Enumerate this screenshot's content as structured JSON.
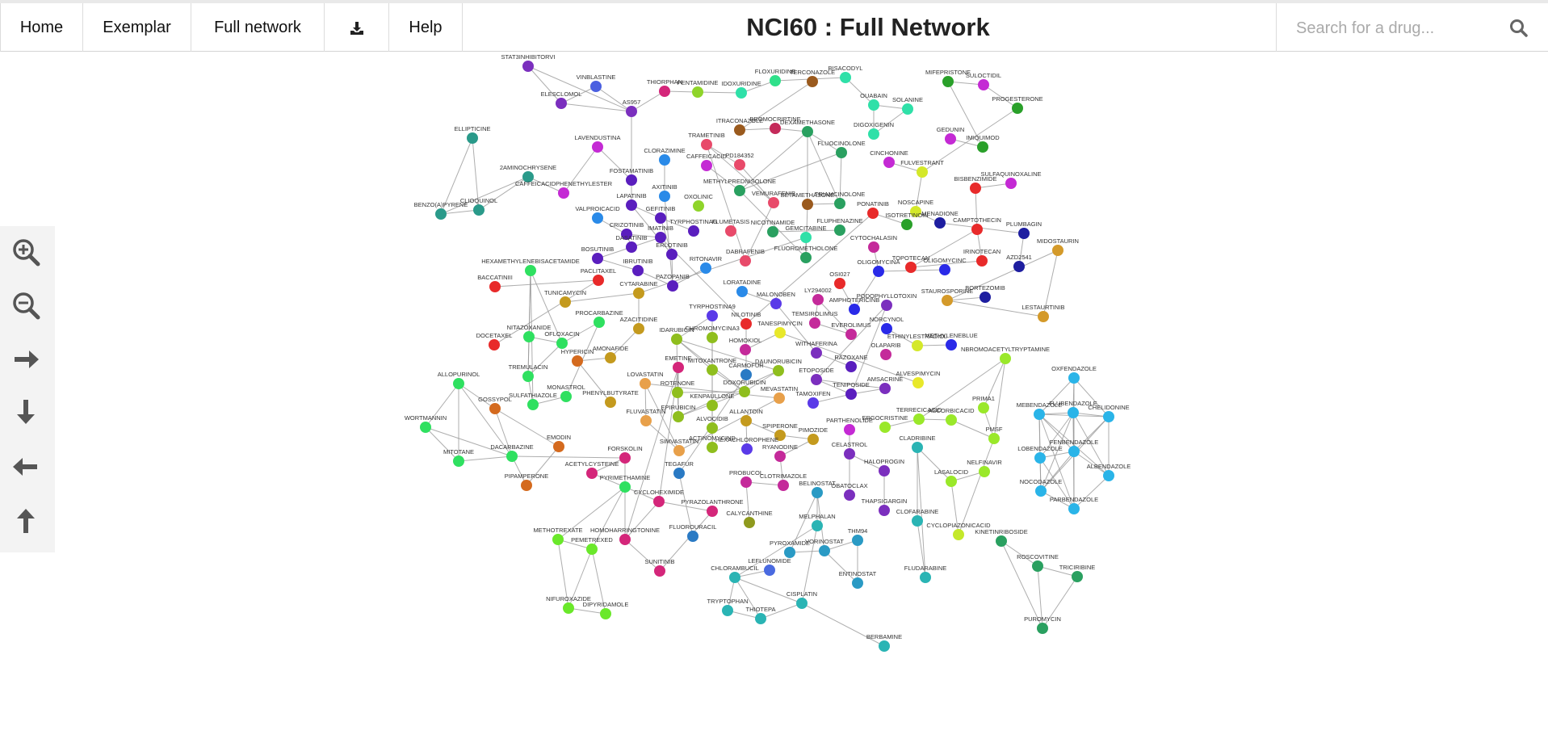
{
  "nav": {
    "home": "Home",
    "exemplar": "Exemplar",
    "full_network": "Full network",
    "download_icon": "download-icon",
    "help": "Help"
  },
  "title": "NCI60 : Full Network",
  "search": {
    "placeholder": "Search for a drug...",
    "icon": "search-icon"
  },
  "zoom_controls": [
    "zoom-in-icon",
    "zoom-out-icon",
    "pan-right-icon",
    "pan-down-icon",
    "pan-left-icon",
    "pan-up-icon"
  ],
  "colors": {
    "accent": "#333333",
    "edge": "#9a9a9a"
  },
  "network": {
    "nodes": [
      {
        "id": "STAT3INHIBITORVI",
        "c": "#7b2fbe"
      },
      {
        "id": "VINBLASTINE",
        "c": "#4a5fe0"
      },
      {
        "id": "ELESCLOMOL",
        "c": "#7b2fbe"
      },
      {
        "id": "AS957",
        "c": "#7b2fbe"
      },
      {
        "id": "THIORPHAN",
        "c": "#d4267a"
      },
      {
        "id": "PENTAMIDINE",
        "c": "#8fd42a"
      },
      {
        "id": "FLOXURIDINE",
        "c": "#2fe08a"
      },
      {
        "id": "TERCONAZOLE",
        "c": "#9a5a1e"
      },
      {
        "id": "BISACODYL",
        "c": "#2fe0a8"
      },
      {
        "id": "IDOXURIDINE",
        "c": "#2fe0a8"
      },
      {
        "id": "MIFEPRISTONE",
        "c": "#2aa02a"
      },
      {
        "id": "SULOCTIDIL",
        "c": "#c42ad4"
      },
      {
        "id": "PROGESTERONE",
        "c": "#2aa02a"
      },
      {
        "id": "OUABAIN",
        "c": "#2fe0a8"
      },
      {
        "id": "SOLANINE",
        "c": "#2fe0a8"
      },
      {
        "id": "ELLIPTICINE",
        "c": "#2a9a8a"
      },
      {
        "id": "LAVENDUSTINA",
        "c": "#c42ad4"
      },
      {
        "id": "ITRACONAZOLE",
        "c": "#9a5a1e"
      },
      {
        "id": "BROMOCRIPTINE",
        "c": "#c42a5a"
      },
      {
        "id": "DEXAMETHASONE",
        "c": "#2aa060"
      },
      {
        "id": "DIGOXIGENIN",
        "c": "#2fe0a8"
      },
      {
        "id": "GEDUNIN",
        "c": "#c42ad4"
      },
      {
        "id": "IMIQUIMOD",
        "c": "#2aa02a"
      },
      {
        "id": "TRAMETINIB",
        "c": "#e84a6a"
      },
      {
        "id": "CLORAZIMINE",
        "c": "#2a8ae8"
      },
      {
        "id": "CAFFEICACID",
        "c": "#c42ad4"
      },
      {
        "id": "PD184352",
        "c": "#e84a6a"
      },
      {
        "id": "FLUOCINOLONE",
        "c": "#2aa060"
      },
      {
        "id": "CINCHONINE",
        "c": "#c42ad4"
      },
      {
        "id": "FULVESTRANT",
        "c": "#d4e82a"
      },
      {
        "id": "SULFAQUINOXALINE",
        "c": "#c42ad4"
      },
      {
        "id": "BISBENZIMIDE",
        "c": "#e82a2a"
      },
      {
        "id": "2AMINOCHRYSENE",
        "c": "#2a9a8a"
      },
      {
        "id": "CAFFEICACIDPHENETHYLESTER",
        "c": "#c42ad4"
      },
      {
        "id": "CLIOQUINOL",
        "c": "#2a9a8a"
      },
      {
        "id": "BENZO(A)PYRENE",
        "c": "#2a9a8a"
      },
      {
        "id": "FOSTAMATINIB",
        "c": "#5a1ebe"
      },
      {
        "id": "AXITINIB",
        "c": "#2a8ae8"
      },
      {
        "id": "OXOLINIC",
        "c": "#8fd42a"
      },
      {
        "id": "METHYLPREDNISOLONE",
        "c": "#2aa060"
      },
      {
        "id": "VEMURAFENIB",
        "c": "#e84a6a"
      },
      {
        "id": "BETAMETHASONE",
        "c": "#9a5a1e"
      },
      {
        "id": "TRIAMCINOLONE",
        "c": "#2aa060"
      },
      {
        "id": "NOSCAPINE",
        "c": "#d4e82a"
      },
      {
        "id": "MENADIONE",
        "c": "#1e1ea0"
      },
      {
        "id": "CAMPTOTHECIN",
        "c": "#e82a2a"
      },
      {
        "id": "PLUMBAGIN",
        "c": "#1e1ea0"
      },
      {
        "id": "VALPROICACID",
        "c": "#2a8ae8"
      },
      {
        "id": "LAPATINIB",
        "c": "#5a1ebe"
      },
      {
        "id": "GEFITINIB",
        "c": "#5a1ebe"
      },
      {
        "id": "TYRPHOSTINAG",
        "c": "#5a1ebe"
      },
      {
        "id": "PONATINIB",
        "c": "#e82a2a"
      },
      {
        "id": "ISOTRETINOIN",
        "c": "#2aa02a"
      },
      {
        "id": "CRIZOTINIB",
        "c": "#5a1ebe"
      },
      {
        "id": "IMATINIB",
        "c": "#5a1ebe"
      },
      {
        "id": "DASATINIB",
        "c": "#5a1ebe"
      },
      {
        "id": "FLUMETASIS",
        "c": "#e84a6a"
      },
      {
        "id": "NICOTINAMIDE",
        "c": "#2aa060"
      },
      {
        "id": "GEMCITABINE",
        "c": "#2fe0a8"
      },
      {
        "id": "FLUPHENAZINE",
        "c": "#2aa060"
      },
      {
        "id": "MIDOSTAURIN",
        "c": "#d49a2a"
      },
      {
        "id": "HEXAMETHYLENEBISACETAMIDE",
        "c": "#2fe060"
      },
      {
        "id": "BOSUTINIB",
        "c": "#5a1ebe"
      },
      {
        "id": "ERLOTINIB",
        "c": "#5a1ebe"
      },
      {
        "id": "DABRAFENIB",
        "c": "#e84a6a"
      },
      {
        "id": "FLUOROMETHOLONE",
        "c": "#2aa060"
      },
      {
        "id": "CYTOCHALASIN",
        "c": "#c42a9a"
      },
      {
        "id": "TOPOTECAN",
        "c": "#e82a2a"
      },
      {
        "id": "OLIGOMYCINC",
        "c": "#2a2ae8"
      },
      {
        "id": "IRINOTECAN",
        "c": "#e82a2a"
      },
      {
        "id": "AZD2541",
        "c": "#1e1ea0"
      },
      {
        "id": "BACCATINIII",
        "c": "#e82a2a"
      },
      {
        "id": "PACLITAXEL",
        "c": "#e82a2a"
      },
      {
        "id": "IBRUTINIB",
        "c": "#5a1ebe"
      },
      {
        "id": "RITONAVIR",
        "c": "#2a8ae8"
      },
      {
        "id": "OLIGOMYCINA",
        "c": "#2a2ae8"
      },
      {
        "id": "OSI027",
        "c": "#e82a2a"
      },
      {
        "id": "TUNICAMYCIN",
        "c": "#c49a1e"
      },
      {
        "id": "CYTARABINE",
        "c": "#c49a1e"
      },
      {
        "id": "PAZOPANIB",
        "c": "#5a1ebe"
      },
      {
        "id": "LORATADINE",
        "c": "#2a8ae8"
      },
      {
        "id": "STAUROSPORINE",
        "c": "#d49a2a"
      },
      {
        "id": "BORTEZOMIB",
        "c": "#1e1ea0"
      },
      {
        "id": "LESTAURTINIB",
        "c": "#d49a2a"
      },
      {
        "id": "PROCARBAZINE",
        "c": "#2fe060"
      },
      {
        "id": "MALONOBEN",
        "c": "#5a3ae8"
      },
      {
        "id": "LY294002",
        "c": "#c42a9a"
      },
      {
        "id": "PODOPHYLLOTOXIN",
        "c": "#7b2fbe"
      },
      {
        "id": "AMPHOTERICINB",
        "c": "#2a2ae8"
      },
      {
        "id": "NITAZOXANIDE",
        "c": "#2fe060"
      },
      {
        "id": "AZACITIDINE",
        "c": "#c49a1e"
      },
      {
        "id": "TYRPHOSTINA9",
        "c": "#5a3ae8"
      },
      {
        "id": "NILOTINIB",
        "c": "#e82a2a"
      },
      {
        "id": "TEMSIROLIMUS",
        "c": "#c42a9a"
      },
      {
        "id": "NORCYNOL",
        "c": "#2a2ae8"
      },
      {
        "id": "OFLOXACIN",
        "c": "#2fe060"
      },
      {
        "id": "DOCETAXEL",
        "c": "#e82a2a"
      },
      {
        "id": "HYPERICIN",
        "c": "#d46a1e"
      },
      {
        "id": "AMONAFIDE",
        "c": "#c49a1e"
      },
      {
        "id": "IDARUBICIN",
        "c": "#8fbe1e"
      },
      {
        "id": "CHROMOMYCINA3",
        "c": "#8fbe1e"
      },
      {
        "id": "TANESPIMYCIN",
        "c": "#e8e82a"
      },
      {
        "id": "EVEROLIMUS",
        "c": "#c42a9a"
      },
      {
        "id": "ETHINYLESTRADIOL",
        "c": "#d4e82a"
      },
      {
        "id": "METHYLENEBLUE",
        "c": "#2a2ae8"
      },
      {
        "id": "NBROMOACETYLTRYPTAMINE",
        "c": "#9ae82a"
      },
      {
        "id": "HOMOKIOL",
        "c": "#c42a9a"
      },
      {
        "id": "WITHAFERINA",
        "c": "#7b2fbe"
      },
      {
        "id": "OLAPARIB",
        "c": "#c42a9a"
      },
      {
        "id": "RAZOXANE",
        "c": "#5a1ebe"
      },
      {
        "id": "TREMULACIN",
        "c": "#2fe060"
      },
      {
        "id": "EMETINE",
        "c": "#d4267a"
      },
      {
        "id": "MITOXANTRONE",
        "c": "#8fbe1e"
      },
      {
        "id": "CARMOFUR",
        "c": "#2a7ac4"
      },
      {
        "id": "DAUNORUBICIN",
        "c": "#8fbe1e"
      },
      {
        "id": "ETOPOSIDE",
        "c": "#7b2fbe"
      },
      {
        "id": "ALVESPIMYCIN",
        "c": "#e8e82a"
      },
      {
        "id": "ALLOPURINOL",
        "c": "#2fe060"
      },
      {
        "id": "LOVASTATIN",
        "c": "#e8a04a"
      },
      {
        "id": "ROTENONE",
        "c": "#8fbe1e"
      },
      {
        "id": "DOXORUBICIN",
        "c": "#8fbe1e"
      },
      {
        "id": "AMSACRINE",
        "c": "#7b2fbe"
      },
      {
        "id": "MONASTROL",
        "c": "#2fe060"
      },
      {
        "id": "MEVASTATIN",
        "c": "#e8a04a"
      },
      {
        "id": "TENIPOSIDE",
        "c": "#5a1ebe"
      },
      {
        "id": "PRIMA1",
        "c": "#9ae82a"
      },
      {
        "id": "SULFATHIAZOLE",
        "c": "#2fe060"
      },
      {
        "id": "PHENYLBUTYRATE",
        "c": "#c49a1e"
      },
      {
        "id": "KENPAULLONE",
        "c": "#8fbe1e"
      },
      {
        "id": "TAMOXIFEN",
        "c": "#5a3ae8"
      },
      {
        "id": "GOSSYPOL",
        "c": "#d46a1e"
      },
      {
        "id": "EPIRUBICIN",
        "c": "#8fbe1e"
      },
      {
        "id": "FLUVASTATIN",
        "c": "#e8a04a"
      },
      {
        "id": "ALLANTOIN",
        "c": "#c49a1e"
      },
      {
        "id": "PARTHENOLIDE",
        "c": "#c42ad4"
      },
      {
        "id": "ERGOCRISTINE",
        "c": "#9ae82a"
      },
      {
        "id": "TERRECICACID",
        "c": "#9ae82a"
      },
      {
        "id": "ASCORBICACID",
        "c": "#9ae82a"
      },
      {
        "id": "MEBENDAZOLE",
        "c": "#2ab4e8"
      },
      {
        "id": "FLUBENDAZOLE",
        "c": "#2ab4e8"
      },
      {
        "id": "CHELIDONINE",
        "c": "#2ab4e8"
      },
      {
        "id": "OXFENDAZOLE",
        "c": "#2ab4e8"
      },
      {
        "id": "WORTMANNIN",
        "c": "#2fe060"
      },
      {
        "id": "ALVOCIDIB",
        "c": "#8fbe1e"
      },
      {
        "id": "SPIPERONE",
        "c": "#c49a1e"
      },
      {
        "id": "PIMOZIDE",
        "c": "#c49a1e"
      },
      {
        "id": "PMSF",
        "c": "#9ae82a"
      },
      {
        "id": "EMODIN",
        "c": "#d46a1e"
      },
      {
        "id": "ACTINOMYCIND",
        "c": "#8fbe1e"
      },
      {
        "id": "HEXACHLOROPHENE",
        "c": "#5a3ae8"
      },
      {
        "id": "SIMVASTATIN",
        "c": "#e8a04a"
      },
      {
        "id": "CLADRIBINE",
        "c": "#2ab4b4"
      },
      {
        "id": "FENBENDAZOLE",
        "c": "#2ab4e8"
      },
      {
        "id": "LOBENDAZOLE",
        "c": "#2ab4e8"
      },
      {
        "id": "MITOTANE",
        "c": "#2fe060"
      },
      {
        "id": "DACARBAZINE",
        "c": "#2fe060"
      },
      {
        "id": "FORSKOLIN",
        "c": "#d4267a"
      },
      {
        "id": "RYANODINE",
        "c": "#c42a9a"
      },
      {
        "id": "CELASTROL",
        "c": "#7b2fbe"
      },
      {
        "id": "NELFINAVIR",
        "c": "#9ae82a"
      },
      {
        "id": "ACETYLCYSTEINE",
        "c": "#d4267a"
      },
      {
        "id": "TEGAFUR",
        "c": "#2a7ac4"
      },
      {
        "id": "HALOPROGIN",
        "c": "#7b2fbe"
      },
      {
        "id": "ALBENDAZOLE",
        "c": "#2ab4e8"
      },
      {
        "id": "LASALOCID",
        "c": "#9ae82a"
      },
      {
        "id": "NOCODAZOLE",
        "c": "#2ab4e8"
      },
      {
        "id": "PYRIMETHAMINE",
        "c": "#2fe060"
      },
      {
        "id": "PROBUCOL",
        "c": "#c42a9a"
      },
      {
        "id": "CLOTRIMAZOLE",
        "c": "#c42a9a"
      },
      {
        "id": "BELINOSTAT",
        "c": "#2a9ac4"
      },
      {
        "id": "PIPAMPERONE",
        "c": "#d46a1e"
      },
      {
        "id": "OBATOCLAX",
        "c": "#7b2fbe"
      },
      {
        "id": "PARBENDAZOLE",
        "c": "#2ab4e8"
      },
      {
        "id": "CYCLOHEXIMIDE",
        "c": "#d4267a"
      },
      {
        "id": "THAPSIGARGIN",
        "c": "#7b2fbe"
      },
      {
        "id": "PYRAZOLANTHRONE",
        "c": "#d4267a"
      },
      {
        "id": "CLOFARABINE",
        "c": "#2ab4b4"
      },
      {
        "id": "CALYCANTHINE",
        "c": "#8f9a1e"
      },
      {
        "id": "MELPHALAN",
        "c": "#2ab4b4"
      },
      {
        "id": "CYCLOPIAZONICACID",
        "c": "#c4e82a"
      },
      {
        "id": "KINETINRIBOSIDE",
        "c": "#2aa060"
      },
      {
        "id": "METHOTREXATE",
        "c": "#6ae82a"
      },
      {
        "id": "HOMOHARRINGTONINE",
        "c": "#d4267a"
      },
      {
        "id": "FLUOROURACIL",
        "c": "#2a7ac4"
      },
      {
        "id": "THM94",
        "c": "#2a9ac4"
      },
      {
        "id": "PEMETREXED",
        "c": "#6ae82a"
      },
      {
        "id": "PYROXAMIDE",
        "c": "#2a9ac4"
      },
      {
        "id": "VORINOSTAT",
        "c": "#2a9ac4"
      },
      {
        "id": "SUNITINIB",
        "c": "#d4267a"
      },
      {
        "id": "LEFLUNOMIDE",
        "c": "#4a6ae0"
      },
      {
        "id": "ENTINOSTAT",
        "c": "#2a9ac4"
      },
      {
        "id": "ROSCOVITINE",
        "c": "#2aa060"
      },
      {
        "id": "TRICIRIBINE",
        "c": "#2aa060"
      },
      {
        "id": "CHLORAMBUCIL",
        "c": "#2ab4b4"
      },
      {
        "id": "FLUDARABINE",
        "c": "#2ab4b4"
      },
      {
        "id": "NIFUROXAZIDE",
        "c": "#6ae82a"
      },
      {
        "id": "DIPYRIDAMOLE",
        "c": "#6ae82a"
      },
      {
        "id": "CISPLATIN",
        "c": "#2ab4b4"
      },
      {
        "id": "TRYPTOPHAN",
        "c": "#2ab4b4"
      },
      {
        "id": "THIOTEPA",
        "c": "#2ab4b4"
      },
      {
        "id": "PUROMYCIN",
        "c": "#2aa060"
      },
      {
        "id": "BERBAMINE",
        "c": "#2ab4b4"
      }
    ]
  }
}
